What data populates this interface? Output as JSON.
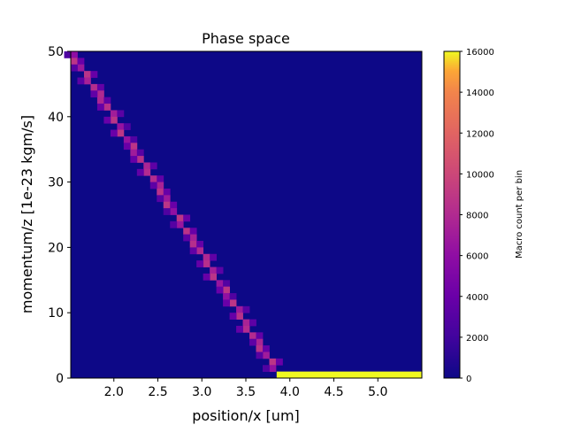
{
  "chart_data": {
    "type": "heatmap",
    "title": "Phase space",
    "xlabel": "position/x [um]",
    "ylabel": "momentum/z [1e-23 kgm/s]",
    "xlim": [
      1.51,
      5.5
    ],
    "ylim": [
      0,
      50
    ],
    "x_ticks": [
      "2.0",
      "2.5",
      "3.0",
      "3.5",
      "4.0",
      "4.5",
      "5.0"
    ],
    "x_tick_values": [
      2.0,
      2.5,
      3.0,
      3.5,
      4.0,
      4.5,
      5.0
    ],
    "y_ticks": [
      "0",
      "10",
      "20",
      "30",
      "40",
      "50"
    ],
    "y_tick_values": [
      0,
      10,
      20,
      30,
      40,
      50
    ],
    "grid": false,
    "colormap": "plasma",
    "background_color": "#0d0887",
    "colorbar": {
      "label": "Macro count per bin",
      "range": [
        0,
        16000
      ],
      "ticks": [
        "0",
        "2000",
        "4000",
        "6000",
        "8000",
        "10000",
        "12000",
        "14000",
        "16000"
      ],
      "tick_values": [
        0,
        2000,
        4000,
        6000,
        8000,
        10000,
        12000,
        14000,
        16000
      ]
    },
    "bin_width_x": 0.0752,
    "bin_height_y": 1.0,
    "diagonal_band": {
      "description_value": "dense diagonal band from upper-left to lower-right",
      "start": [
        1.51,
        50
      ],
      "end": [
        3.85,
        1
      ],
      "typical_count": 8000
    },
    "bright_row": {
      "y_range": [
        0,
        1
      ],
      "x_range": [
        3.85,
        5.5
      ],
      "count": 16000
    }
  }
}
